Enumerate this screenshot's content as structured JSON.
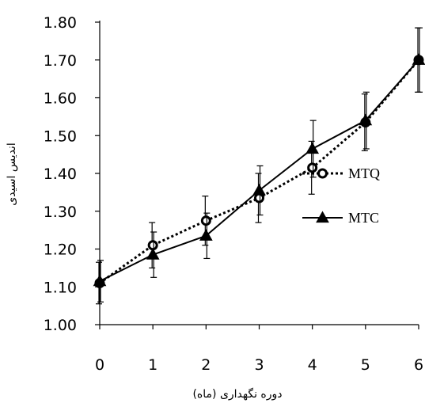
{
  "chart_data": {
    "type": "line",
    "xlabel": "دوره نگهداری (ماه)",
    "ylabel": "اندیس اسیدی",
    "x": [
      0,
      1,
      2,
      3,
      4,
      5,
      6
    ],
    "x_tick_labels": [
      "0",
      "1",
      "2",
      "3",
      "4",
      "5",
      "6"
    ],
    "y_tick_labels": [
      "1.00",
      "1.10",
      "1.20",
      "1.30",
      "1.40",
      "1.50",
      "1.60",
      "1.70",
      "1.80"
    ],
    "ylim": [
      1.0,
      1.8
    ],
    "xlim": [
      0,
      6
    ],
    "grid": false,
    "legend_position": "right",
    "series": [
      {
        "name": "MTQ",
        "marker": "open-circle",
        "line_style": "dotted",
        "color": "#000000",
        "values": [
          1.11,
          1.21,
          1.275,
          1.335,
          1.415,
          1.535,
          1.7
        ],
        "error": [
          0.055,
          0.06,
          0.065,
          0.065,
          0.07,
          0.075,
          0.085
        ]
      },
      {
        "name": "MTC",
        "marker": "filled-triangle",
        "line_style": "solid",
        "color": "#000000",
        "values": [
          1.115,
          1.185,
          1.235,
          1.355,
          1.465,
          1.54,
          1.7
        ],
        "error": [
          0.055,
          0.06,
          0.06,
          0.065,
          0.075,
          0.075,
          0.085
        ]
      }
    ]
  }
}
